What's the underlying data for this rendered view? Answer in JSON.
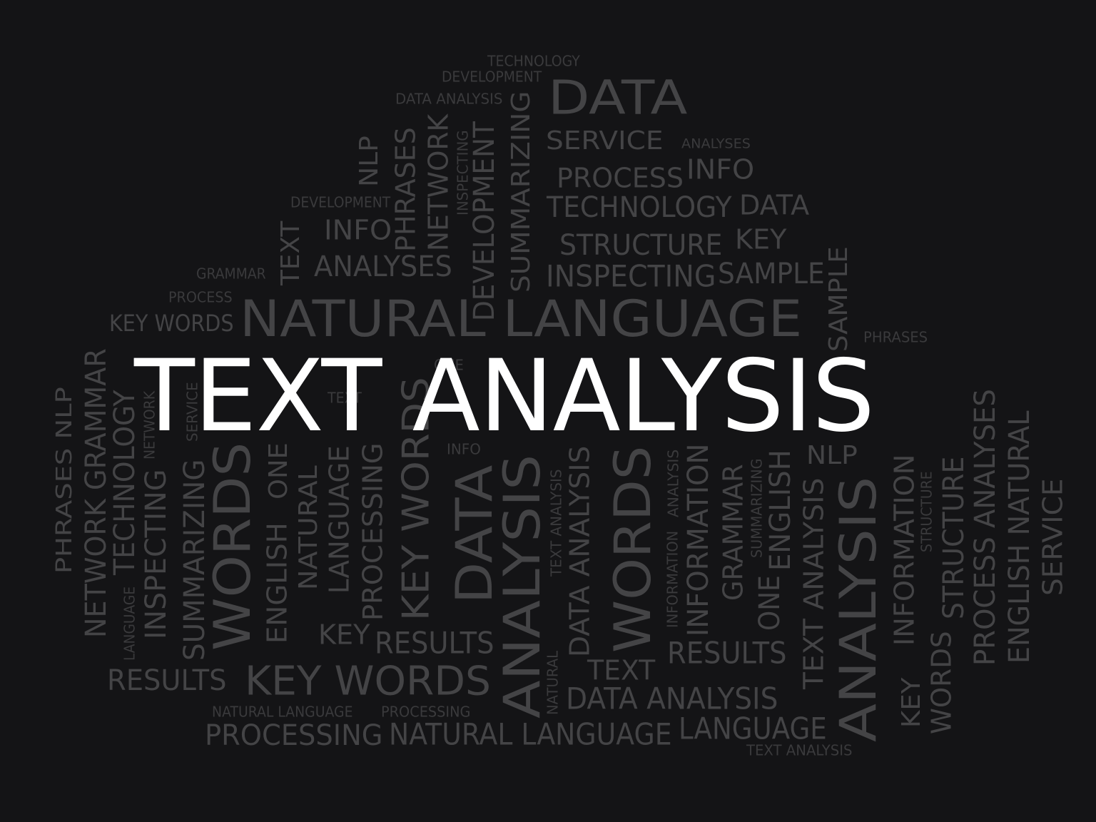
{
  "headline": "TEXT ANALYSIS",
  "colors": {
    "background": "#141416",
    "headline": "#ffffff",
    "word_dark": "#3a3a3c",
    "word_mid": "#444446",
    "word_light": "#505052"
  },
  "words": [
    {
      "text": "TECHNOLOGY",
      "orientation": "horizontal"
    },
    {
      "text": "DEVELOPMENT",
      "orientation": "horizontal"
    },
    {
      "text": "DATA ANALYSIS",
      "orientation": "horizontal"
    },
    {
      "text": "DATA",
      "orientation": "horizontal"
    },
    {
      "text": "SERVICE",
      "orientation": "horizontal"
    },
    {
      "text": "ANALYSES",
      "orientation": "horizontal"
    },
    {
      "text": "PROCESS",
      "orientation": "horizontal"
    },
    {
      "text": "INFO",
      "orientation": "horizontal"
    },
    {
      "text": "TECHNOLOGY",
      "orientation": "horizontal"
    },
    {
      "text": "DATA",
      "orientation": "horizontal"
    },
    {
      "text": "DEVELOPMENT",
      "orientation": "horizontal"
    },
    {
      "text": "INFO",
      "orientation": "horizontal"
    },
    {
      "text": "STRUCTURE",
      "orientation": "horizontal"
    },
    {
      "text": "KEY",
      "orientation": "horizontal"
    },
    {
      "text": "GRAMMAR",
      "orientation": "horizontal"
    },
    {
      "text": "ANALYSES",
      "orientation": "horizontal"
    },
    {
      "text": "INSPECTING",
      "orientation": "horizontal"
    },
    {
      "text": "SAMPLE",
      "orientation": "horizontal"
    },
    {
      "text": "PROCESS",
      "orientation": "horizontal"
    },
    {
      "text": "KEY WORDS",
      "orientation": "horizontal"
    },
    {
      "text": "NATURAL LANGUAGE",
      "orientation": "horizontal"
    },
    {
      "text": "PHRASES",
      "orientation": "horizontal"
    },
    {
      "text": "ONE",
      "orientation": "horizontal"
    },
    {
      "text": "TEXT",
      "orientation": "horizontal"
    },
    {
      "text": "INFO",
      "orientation": "horizontal"
    },
    {
      "text": "NLP",
      "orientation": "horizontal"
    },
    {
      "text": "KEY",
      "orientation": "horizontal"
    },
    {
      "text": "RESULTS",
      "orientation": "horizontal"
    },
    {
      "text": "RESULTS",
      "orientation": "horizontal"
    },
    {
      "text": "RESULTS",
      "orientation": "horizontal"
    },
    {
      "text": "KEY WORDS",
      "orientation": "horizontal"
    },
    {
      "text": "TEXT",
      "orientation": "horizontal"
    },
    {
      "text": "DATA ANALYSIS",
      "orientation": "horizontal"
    },
    {
      "text": "NATURAL LANGUAGE",
      "orientation": "horizontal"
    },
    {
      "text": "PROCESSING",
      "orientation": "horizontal"
    },
    {
      "text": "PROCESSING",
      "orientation": "horizontal"
    },
    {
      "text": "NATURAL LANGUAGE",
      "orientation": "horizontal"
    },
    {
      "text": "LANGUAGE",
      "orientation": "horizontal"
    },
    {
      "text": "TEXT ANALYSIS",
      "orientation": "horizontal"
    },
    {
      "text": "NLP",
      "orientation": "vertical"
    },
    {
      "text": "PHRASES",
      "orientation": "vertical"
    },
    {
      "text": "NETWORK",
      "orientation": "vertical"
    },
    {
      "text": "INSPECTING",
      "orientation": "vertical"
    },
    {
      "text": "DEVELOPMENT",
      "orientation": "vertical"
    },
    {
      "text": "SUMMARIZING",
      "orientation": "vertical"
    },
    {
      "text": "TEXT",
      "orientation": "vertical"
    },
    {
      "text": "SAMPLE",
      "orientation": "vertical"
    },
    {
      "text": "PHRASES NLP",
      "orientation": "vertical"
    },
    {
      "text": "NETWORK GRAMMAR",
      "orientation": "vertical"
    },
    {
      "text": "TECHNOLOGY",
      "orientation": "vertical"
    },
    {
      "text": "LANGUAGE",
      "orientation": "vertical"
    },
    {
      "text": "INSPECTING",
      "orientation": "vertical"
    },
    {
      "text": "NETWORK",
      "orientation": "vertical"
    },
    {
      "text": "SUMMARIZING",
      "orientation": "vertical"
    },
    {
      "text": "SERVICE",
      "orientation": "vertical"
    },
    {
      "text": "WORDS",
      "orientation": "vertical"
    },
    {
      "text": "ENGLISH",
      "orientation": "vertical"
    },
    {
      "text": "ONE",
      "orientation": "vertical"
    },
    {
      "text": "NATURAL",
      "orientation": "vertical"
    },
    {
      "text": "LANGUAGE",
      "orientation": "vertical"
    },
    {
      "text": "PROCESSING",
      "orientation": "vertical"
    },
    {
      "text": "KEY WORDS",
      "orientation": "vertical"
    },
    {
      "text": "DATA",
      "orientation": "vertical"
    },
    {
      "text": "ANALYSIS",
      "orientation": "vertical"
    },
    {
      "text": "NATURAL",
      "orientation": "vertical"
    },
    {
      "text": "TEXT ANALYSIS",
      "orientation": "vertical"
    },
    {
      "text": "DATA ANALYSIS",
      "orientation": "vertical"
    },
    {
      "text": "WORDS",
      "orientation": "vertical"
    },
    {
      "text": "INFORMATION",
      "orientation": "vertical"
    },
    {
      "text": "ANALYSIS",
      "orientation": "vertical"
    },
    {
      "text": "INFORMATION",
      "orientation": "vertical"
    },
    {
      "text": "GRAMMAR",
      "orientation": "vertical"
    },
    {
      "text": "SUMMARIZING",
      "orientation": "vertical"
    },
    {
      "text": "ONE",
      "orientation": "vertical"
    },
    {
      "text": "ENGLISH",
      "orientation": "vertical"
    },
    {
      "text": "TEXT ANALYSIS",
      "orientation": "vertical"
    },
    {
      "text": "ANALYSIS",
      "orientation": "vertical"
    },
    {
      "text": "KEY",
      "orientation": "vertical"
    },
    {
      "text": "INFORMATION",
      "orientation": "vertical"
    },
    {
      "text": "STRUCTURE",
      "orientation": "vertical"
    },
    {
      "text": "WORDS",
      "orientation": "vertical"
    },
    {
      "text": "STRUCTURE",
      "orientation": "vertical"
    },
    {
      "text": "PROCESS ANALYSES",
      "orientation": "vertical"
    },
    {
      "text": "ENGLISH NATURAL",
      "orientation": "vertical"
    },
    {
      "text": "SERVICE",
      "orientation": "vertical"
    }
  ]
}
